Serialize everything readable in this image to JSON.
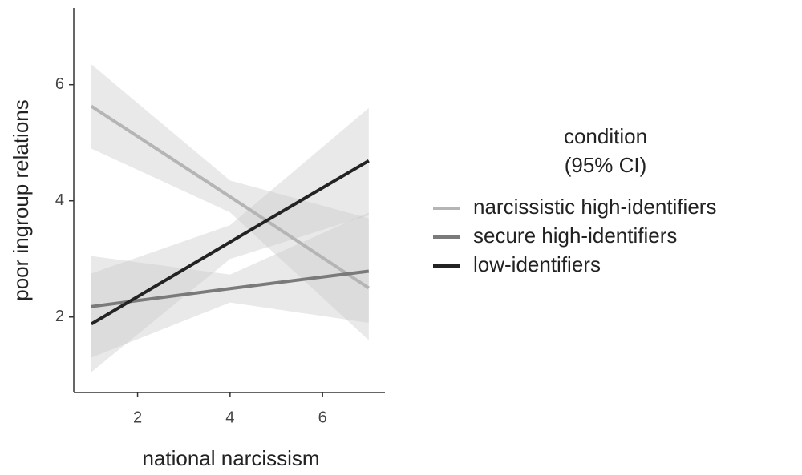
{
  "chart_data": {
    "type": "line",
    "x_label": "national narcissism",
    "y_label": "poor ingroup relations",
    "legend_title": [
      "condition",
      "(95% CI)"
    ],
    "legend_position": "right",
    "x": [
      1,
      4,
      7
    ],
    "series": [
      {
        "name": "narcissistic high-identifiers",
        "color": "#b5b5b5",
        "values": [
          5.63,
          4.07,
          2.5
        ],
        "lower": [
          4.9,
          3.8,
          1.6
        ],
        "upper": [
          6.35,
          4.35,
          3.7
        ]
      },
      {
        "name": "secure high-identifiers",
        "color": "#7a7a7a",
        "values": [
          2.18,
          2.49,
          2.79
        ],
        "lower": [
          1.3,
          2.25,
          1.9
        ],
        "upper": [
          3.05,
          2.73,
          3.8
        ]
      },
      {
        "name": "low-identifiers",
        "color": "#232323",
        "values": [
          1.88,
          3.29,
          4.69
        ],
        "lower": [
          1.05,
          3.0,
          3.75
        ],
        "upper": [
          2.75,
          3.58,
          5.6
        ]
      }
    ],
    "xlim": [
      0.62,
      7.35
    ],
    "ylim": [
      0.7,
      7.32
    ],
    "xticks": [
      2,
      4,
      6
    ],
    "yticks": [
      2,
      4,
      6
    ],
    "ribbon_color": "#c8c8c8"
  }
}
